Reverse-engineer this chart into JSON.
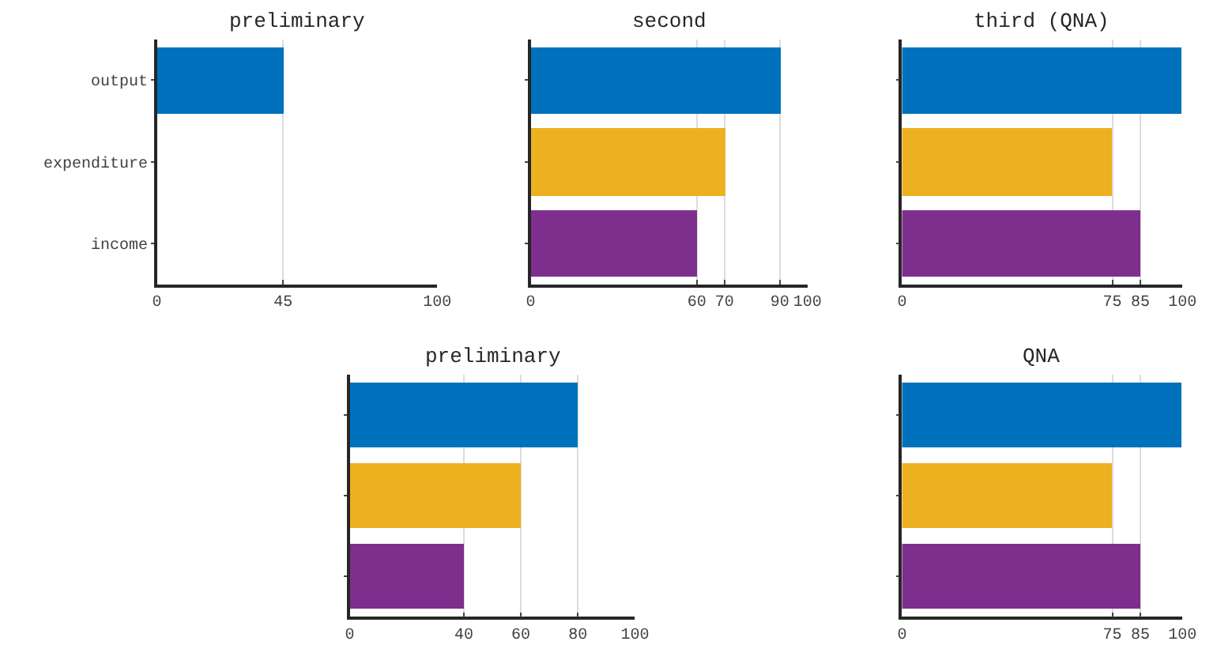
{
  "chart_data": [
    {
      "type": "bar",
      "orientation": "horizontal",
      "title": "preliminary",
      "categories": [
        "output",
        "expenditure",
        "income"
      ],
      "values": [
        45,
        0,
        0
      ],
      "colors": [
        "#0072bd",
        "#edb120",
        "#7e2f8e"
      ],
      "xlim": [
        0,
        100
      ],
      "xticks": [
        0,
        45,
        100
      ],
      "grid": "x",
      "legend": false
    },
    {
      "type": "bar",
      "orientation": "horizontal",
      "title": "second",
      "categories": [
        null,
        null,
        null
      ],
      "values": [
        90,
        70,
        60
      ],
      "colors": [
        "#0072bd",
        "#edb120",
        "#7e2f8e"
      ],
      "xlim": [
        0,
        100
      ],
      "xticks": [
        0,
        60,
        70,
        90,
        100
      ],
      "grid": "x",
      "legend": false,
      "tick_labels": "x"
    },
    {
      "type": "bar",
      "orientation": "horizontal",
      "title": "third (QNA)",
      "categories": [
        null,
        null,
        null
      ],
      "values": [
        100,
        75,
        85
      ],
      "colors": [
        "#0072bd",
        "#edb120",
        "#7e2f8e"
      ],
      "xlim": [
        0,
        100
      ],
      "xticks": [
        0,
        75,
        85,
        100
      ],
      "grid": "x",
      "legend": false,
      "tick_labels": "x"
    },
    {
      "type": "bar",
      "orientation": "horizontal",
      "title": "preliminary",
      "categories": [
        null,
        null,
        null
      ],
      "values": [
        80,
        60,
        40
      ],
      "colors": [
        "#0072bd",
        "#edb120",
        "#7e2f8e"
      ],
      "xlim": [
        0,
        100
      ],
      "xticks": [
        0,
        40,
        60,
        80,
        100
      ],
      "grid": "x",
      "legend": false,
      "tick_labels": "x"
    },
    {
      "type": "bar",
      "orientation": "horizontal",
      "title": "QNA",
      "categories": [
        null,
        null,
        null
      ],
      "values": [
        100,
        75,
        85
      ],
      "colors": [
        "#0072bd",
        "#edb120",
        "#7e2f8e"
      ],
      "xlim": [
        0,
        100
      ],
      "xticks": [
        0,
        75,
        85,
        100
      ],
      "grid": "x",
      "legend": false,
      "tick_labels": "x"
    }
  ]
}
